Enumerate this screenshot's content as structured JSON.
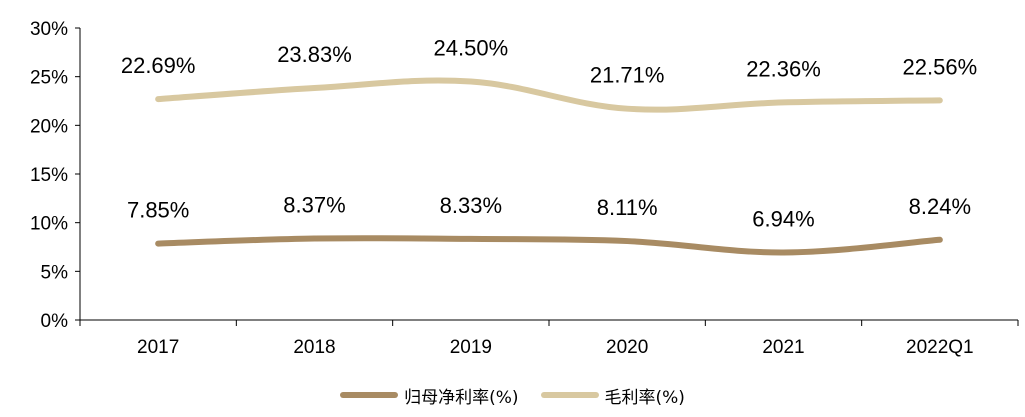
{
  "chart_data": {
    "type": "line",
    "categories": [
      "2017",
      "2018",
      "2019",
      "2020",
      "2021",
      "2022Q1"
    ],
    "series": [
      {
        "name": "归母净利率(%)",
        "values": [
          7.85,
          8.37,
          8.33,
          8.11,
          6.94,
          8.24
        ],
        "labels": [
          "7.85%",
          "8.37%",
          "8.33%",
          "8.11%",
          "6.94%",
          "8.24%"
        ],
        "color": "#A88B63"
      },
      {
        "name": "毛利率(%)",
        "values": [
          22.69,
          23.83,
          24.5,
          21.71,
          22.36,
          22.56
        ],
        "labels": [
          "22.69%",
          "23.83%",
          "24.50%",
          "21.71%",
          "22.36%",
          "22.56%"
        ],
        "color": "#D8C8A0"
      }
    ],
    "yticks": [
      "0%",
      "5%",
      "10%",
      "15%",
      "20%",
      "25%",
      "30%"
    ],
    "ylim": [
      0,
      30
    ],
    "grid": false,
    "legend": "bottom"
  }
}
